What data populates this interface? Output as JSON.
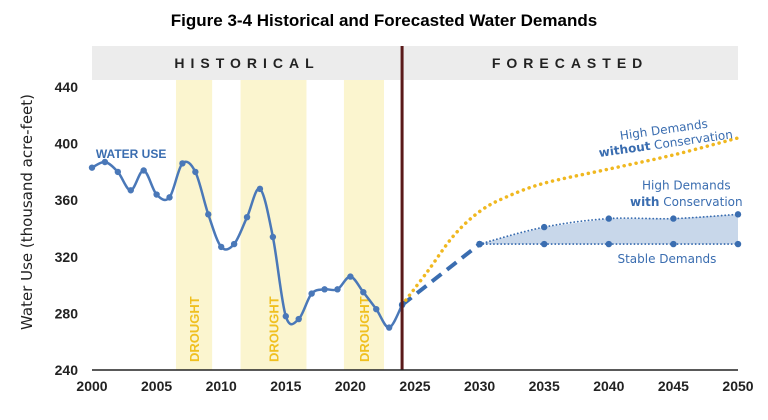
{
  "chart_data": {
    "type": "line",
    "title": "Figure 3-4 Historical and Forecasted Water Demands",
    "ylabel": "Water Use (thousand acre-feet)",
    "xlabel": "",
    "xlim": [
      2000,
      2050
    ],
    "ylim": [
      240,
      450
    ],
    "x_ticks": [
      "2000",
      "2005",
      "2010",
      "2015",
      "2020",
      "2025",
      "2030",
      "2035",
      "2040",
      "2045",
      "2050"
    ],
    "y_ticks": [
      "240",
      "280",
      "320",
      "360",
      "400",
      "440"
    ],
    "grid": false,
    "period_labels": {
      "historical": "HISTORICAL",
      "forecasted": "FORECASTED"
    },
    "divider_x": 2024,
    "drought_periods": [
      {
        "label": "DROUGHT",
        "start": 2006.5,
        "end": 2009.3
      },
      {
        "label": "DROUGHT",
        "start": 2011.5,
        "end": 2016.6
      },
      {
        "label": "DROUGHT",
        "start": 2019.5,
        "end": 2022.6
      }
    ],
    "series": [
      {
        "name": "WATER USE",
        "style": "solid",
        "color": "#4a78b8",
        "x": [
          2000,
          2001,
          2002,
          2003,
          2004,
          2005,
          2006,
          2007,
          2008,
          2009,
          2010,
          2011,
          2012,
          2013,
          2014,
          2015,
          2016,
          2017,
          2018,
          2019,
          2020,
          2021,
          2022,
          2023,
          2024
        ],
        "y": [
          383,
          387,
          380,
          367,
          381,
          364,
          362,
          386,
          380,
          350,
          327,
          329,
          348,
          368,
          334,
          278,
          276,
          294,
          297,
          297,
          306,
          295,
          283,
          270,
          286
        ]
      },
      {
        "name": "projection",
        "style": "dashed",
        "color": "#3a6db0",
        "x": [
          2024,
          2030
        ],
        "y": [
          286,
          329
        ]
      },
      {
        "name": "High Demands without Conservation",
        "style": "dotted",
        "color": "#f0b820",
        "x": [
          2024,
          2026,
          2028,
          2030,
          2032,
          2035,
          2040,
          2045,
          2050
        ],
        "y": [
          286,
          310,
          335,
          352,
          362,
          372,
          382,
          392,
          404
        ]
      },
      {
        "name": "High Demands with Conservation",
        "style": "dotted",
        "color": "#3a6db0",
        "x": [
          2030,
          2035,
          2040,
          2045,
          2050
        ],
        "y": [
          329,
          341,
          347,
          347,
          350
        ]
      },
      {
        "name": "Stable Demands",
        "style": "dotted",
        "color": "#3a6db0",
        "x": [
          2030,
          2035,
          2040,
          2045,
          2050
        ],
        "y": [
          329,
          329,
          329,
          329,
          329
        ]
      }
    ],
    "annotations": {
      "water_use": "WATER USE",
      "high_without_line1": "High Demands",
      "high_without_bold": "without",
      "high_without_rest": " Conservation",
      "high_with_line1": "High Demands",
      "high_with_bold": "with",
      "high_with_rest": " Conservation",
      "stable": "Stable Demands"
    },
    "colors": {
      "band_background": "#ececec",
      "drought_fill": "#fbf5cf",
      "divider": "#5a1a1a",
      "range_fill": "#c8d7ea"
    }
  }
}
